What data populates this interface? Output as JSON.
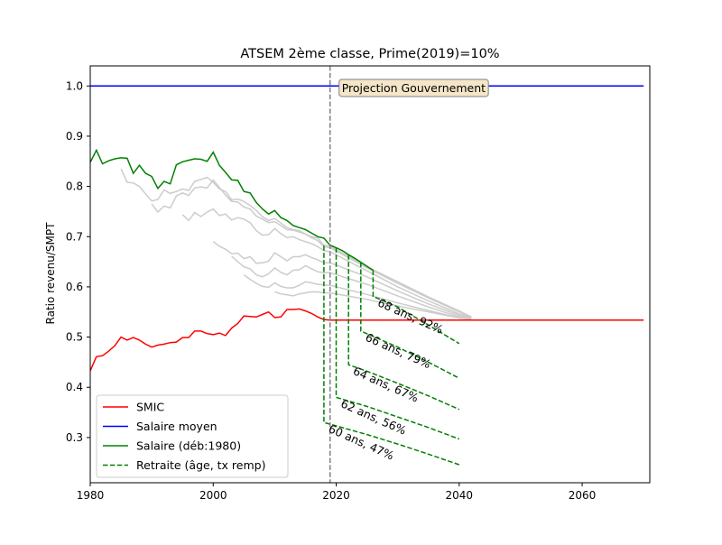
{
  "chart_data": {
    "type": "line",
    "title": "ATSEM 2ème classe, Prime(2019)=10%",
    "xlabel": "",
    "ylabel": "Ratio revenu/SMPT",
    "xlim": [
      1980,
      2071
    ],
    "ylim": [
      0.21,
      1.04
    ],
    "x_ticks": [
      "1980",
      "2000",
      "2020",
      "2040",
      "2060"
    ],
    "y_ticks": [
      "0.3",
      "0.4",
      "0.5",
      "0.6",
      "0.7",
      "0.8",
      "0.9",
      "1.0"
    ],
    "grid": false,
    "legend_position": "lower-left",
    "colors": {
      "smic": "#ff0000",
      "salaire_moyen": "#0000ff",
      "salaire": "#008000",
      "retraite": "#008000",
      "other_careers": "#cccccc",
      "projection_line": "#808080",
      "annotation_box_fill": "#f5e6c8"
    },
    "legend": [
      "SMIC",
      "Salaire moyen",
      "Salaire (déb:1980)",
      "Retraite (âge, tx remp)"
    ],
    "annotations": {
      "projection_x": 2019,
      "projection_label": "Projection Gouvernement"
    },
    "series": [
      {
        "name": "SMIC",
        "style": "solid",
        "color": "#ff0000",
        "x": [
          1980,
          1981,
          1982,
          1983,
          1984,
          1985,
          1986,
          1987,
          1988,
          1989,
          1990,
          1991,
          1992,
          1993,
          1994,
          1995,
          1996,
          1997,
          1998,
          1999,
          2000,
          2001,
          2002,
          2003,
          2004,
          2005,
          2006,
          2007,
          2008,
          2009,
          2010,
          2011,
          2012,
          2013,
          2014,
          2015,
          2016,
          2017,
          2018,
          2019,
          2030,
          2040,
          2050,
          2060,
          2070
        ],
        "y": [
          0.433,
          0.461,
          0.463,
          0.472,
          0.483,
          0.5,
          0.494,
          0.499,
          0.494,
          0.486,
          0.48,
          0.484,
          0.486,
          0.489,
          0.49,
          0.499,
          0.499,
          0.512,
          0.512,
          0.507,
          0.505,
          0.508,
          0.503,
          0.518,
          0.527,
          0.542,
          0.541,
          0.54,
          0.545,
          0.55,
          0.539,
          0.54,
          0.555,
          0.555,
          0.556,
          0.552,
          0.547,
          0.54,
          0.535,
          0.534,
          0.534,
          0.534,
          0.534,
          0.534,
          0.534
        ]
      },
      {
        "name": "Salaire moyen",
        "style": "solid",
        "color": "#0000ff",
        "x": [
          1980,
          2070
        ],
        "y": [
          1.0,
          1.0
        ]
      },
      {
        "name": "Salaire (déb:1980)",
        "style": "solid",
        "color": "#008000",
        "x": [
          1980,
          1981,
          1982,
          1983,
          1984,
          1985,
          1986,
          1987,
          1988,
          1989,
          1990,
          1991,
          1992,
          1993,
          1994,
          1995,
          1996,
          1997,
          1998,
          1999,
          2000,
          2001,
          2002,
          2003,
          2004,
          2005,
          2006,
          2007,
          2008,
          2009,
          2010,
          2011,
          2012,
          2013,
          2014,
          2015,
          2016,
          2017,
          2018,
          2019,
          2020,
          2021,
          2022,
          2023,
          2024,
          2025,
          2026
        ],
        "y": [
          0.848,
          0.872,
          0.845,
          0.851,
          0.855,
          0.857,
          0.856,
          0.826,
          0.842,
          0.826,
          0.82,
          0.796,
          0.81,
          0.805,
          0.843,
          0.849,
          0.852,
          0.855,
          0.854,
          0.85,
          0.868,
          0.842,
          0.828,
          0.813,
          0.812,
          0.79,
          0.787,
          0.768,
          0.755,
          0.745,
          0.752,
          0.738,
          0.732,
          0.722,
          0.718,
          0.714,
          0.707,
          0.7,
          0.697,
          0.683,
          0.678,
          0.672,
          0.664,
          0.657,
          0.649,
          0.641,
          0.633
        ]
      },
      {
        "name": "60 ans, 47%",
        "style": "dashed",
        "color": "#008000",
        "x": [
          2018,
          2018,
          2025,
          2030,
          2035,
          2040
        ],
        "y": [
          0.682,
          0.33,
          0.306,
          0.287,
          0.267,
          0.246
        ],
        "label": "60 ans, 47%"
      },
      {
        "name": "62 ans, 56%",
        "style": "dashed",
        "color": "#008000",
        "x": [
          2020,
          2020,
          2025,
          2030,
          2035,
          2040
        ],
        "y": [
          0.678,
          0.38,
          0.362,
          0.341,
          0.32,
          0.297
        ],
        "label": "62 ans, 56%"
      },
      {
        "name": "64 ans, 67%",
        "style": "dashed",
        "color": "#008000",
        "x": [
          2022,
          2022,
          2025,
          2030,
          2035,
          2040
        ],
        "y": [
          0.664,
          0.445,
          0.432,
          0.408,
          0.383,
          0.356
        ],
        "label": "64 ans, 67%"
      },
      {
        "name": "66 ans, 79%",
        "style": "dashed",
        "color": "#008000",
        "x": [
          2024,
          2024,
          2030,
          2035,
          2040
        ],
        "y": [
          0.649,
          0.512,
          0.48,
          0.45,
          0.418
        ],
        "label": "66 ans, 79%"
      },
      {
        "name": "68 ans, 92%",
        "style": "dashed",
        "color": "#008000",
        "x": [
          2026,
          2026,
          2030,
          2035,
          2040
        ],
        "y": [
          0.633,
          0.581,
          0.56,
          0.524,
          0.487
        ],
        "label": "68 ans, 92%"
      }
    ],
    "other_careers": [
      {
        "x": [
          1985,
          1986,
          1987,
          1988,
          1989,
          1990,
          1991,
          1992,
          1993,
          1994,
          1995,
          1996,
          1997,
          1998,
          1999,
          2000,
          2001,
          2002,
          2003,
          2004,
          2005,
          2006,
          2007,
          2008,
          2009,
          2010,
          2011,
          2012,
          2013,
          2014,
          2015,
          2016,
          2017,
          2018,
          2019,
          2025,
          2030,
          2035,
          2040,
          2042
        ],
        "y": [
          0.835,
          0.808,
          0.807,
          0.8,
          0.785,
          0.771,
          0.774,
          0.793,
          0.786,
          0.79,
          0.795,
          0.792,
          0.81,
          0.814,
          0.818,
          0.808,
          0.795,
          0.79,
          0.773,
          0.775,
          0.77,
          0.762,
          0.752,
          0.74,
          0.732,
          0.736,
          0.727,
          0.718,
          0.714,
          0.712,
          0.705,
          0.7,
          0.697,
          0.683,
          0.681,
          0.64,
          0.61,
          0.58,
          0.552,
          0.54
        ]
      },
      {
        "x": [
          1990,
          1991,
          1992,
          1993,
          1994,
          1995,
          1996,
          1997,
          1998,
          1999,
          2000,
          2001,
          2002,
          2003,
          2004,
          2005,
          2006,
          2007,
          2008,
          2009,
          2010,
          2011,
          2012,
          2013,
          2014,
          2015,
          2016,
          2017,
          2018,
          2019,
          2025,
          2030,
          2035,
          2040,
          2042
        ],
        "y": [
          0.765,
          0.749,
          0.761,
          0.757,
          0.781,
          0.787,
          0.782,
          0.797,
          0.799,
          0.797,
          0.813,
          0.798,
          0.783,
          0.77,
          0.769,
          0.759,
          0.755,
          0.741,
          0.735,
          0.728,
          0.73,
          0.722,
          0.714,
          0.713,
          0.709,
          0.705,
          0.698,
          0.692,
          0.68,
          0.678,
          0.638,
          0.607,
          0.578,
          0.55,
          0.54
        ]
      },
      {
        "x": [
          1995,
          1996,
          1997,
          1998,
          1999,
          2000,
          2001,
          2002,
          2003,
          2004,
          2005,
          2006,
          2007,
          2008,
          2009,
          2010,
          2011,
          2012,
          2013,
          2014,
          2015,
          2016,
          2017,
          2018,
          2019,
          2025,
          2030,
          2035,
          2040,
          2042
        ],
        "y": [
          0.744,
          0.732,
          0.748,
          0.74,
          0.749,
          0.755,
          0.742,
          0.745,
          0.733,
          0.738,
          0.735,
          0.728,
          0.712,
          0.703,
          0.704,
          0.716,
          0.706,
          0.698,
          0.7,
          0.694,
          0.69,
          0.686,
          0.68,
          0.672,
          0.67,
          0.632,
          0.6,
          0.572,
          0.546,
          0.54
        ]
      },
      {
        "x": [
          2000,
          2001,
          2002,
          2003,
          2004,
          2005,
          2006,
          2007,
          2008,
          2009,
          2010,
          2011,
          2012,
          2013,
          2014,
          2015,
          2016,
          2017,
          2018,
          2019,
          2025,
          2030,
          2035,
          2040,
          2042
        ],
        "y": [
          0.69,
          0.681,
          0.675,
          0.666,
          0.667,
          0.656,
          0.66,
          0.647,
          0.648,
          0.651,
          0.668,
          0.66,
          0.652,
          0.66,
          0.66,
          0.664,
          0.658,
          0.654,
          0.648,
          0.648,
          0.62,
          0.592,
          0.566,
          0.543,
          0.538
        ]
      },
      {
        "x": [
          2003,
          2004,
          2005,
          2006,
          2007,
          2008,
          2009,
          2010,
          2011,
          2012,
          2013,
          2014,
          2015,
          2016,
          2017,
          2018,
          2019,
          2025,
          2030,
          2035,
          2040,
          2042
        ],
        "y": [
          0.661,
          0.65,
          0.64,
          0.636,
          0.624,
          0.62,
          0.626,
          0.638,
          0.629,
          0.624,
          0.633,
          0.634,
          0.642,
          0.636,
          0.63,
          0.628,
          0.628,
          0.605,
          0.582,
          0.56,
          0.54,
          0.537
        ]
      },
      {
        "x": [
          2005,
          2006,
          2007,
          2008,
          2009,
          2010,
          2011,
          2012,
          2013,
          2014,
          2015,
          2016,
          2017,
          2018,
          2019,
          2025,
          2030,
          2035,
          2040,
          2042
        ],
        "y": [
          0.624,
          0.615,
          0.607,
          0.601,
          0.599,
          0.608,
          0.601,
          0.598,
          0.598,
          0.603,
          0.61,
          0.608,
          0.605,
          0.604,
          0.603,
          0.585,
          0.568,
          0.553,
          0.538,
          0.536
        ]
      },
      {
        "x": [
          2010,
          2011,
          2012,
          2013,
          2014,
          2015,
          2016,
          2017,
          2018,
          2019,
          2025,
          2030,
          2035,
          2040,
          2042
        ],
        "y": [
          0.59,
          0.586,
          0.584,
          0.582,
          0.586,
          0.588,
          0.59,
          0.59,
          0.588,
          0.588,
          0.575,
          0.562,
          0.55,
          0.538,
          0.536
        ]
      }
    ]
  }
}
